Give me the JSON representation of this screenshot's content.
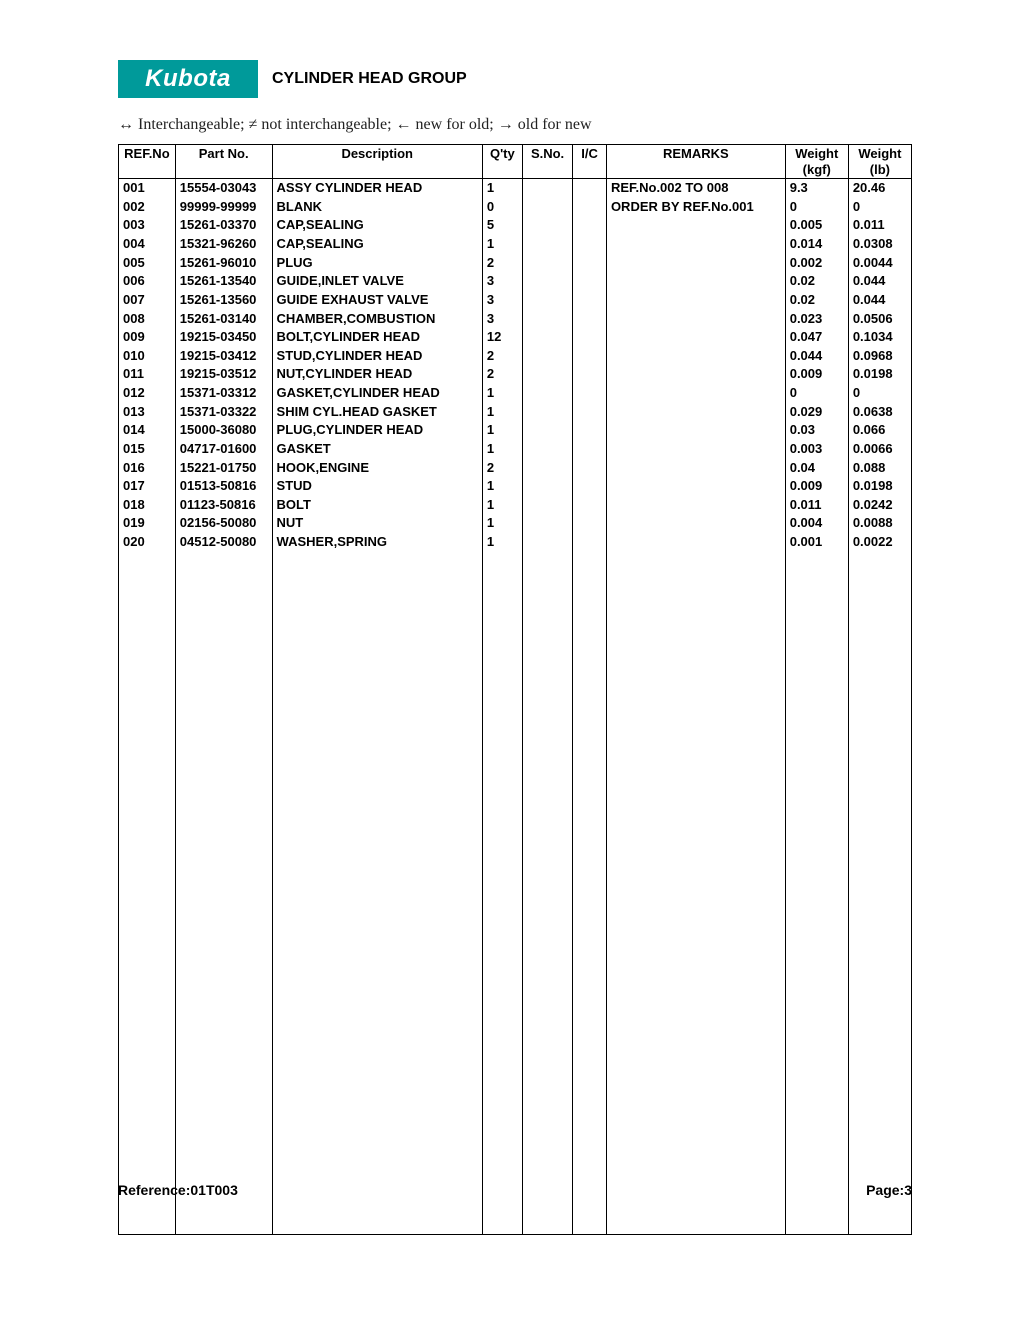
{
  "brand": "Kubota",
  "title": "CYLINDER HEAD GROUP",
  "legend": "↔ Interchangeable;   ≠ not interchangeable;   ← new for old;   → old for new",
  "columns": {
    "ref": "REF.No",
    "part": "Part No.",
    "desc": "Description",
    "qty": "Q'ty",
    "sno": "S.No.",
    "ic": "I/C",
    "remarks": "REMARKS",
    "wkgf_l1": "Weight",
    "wkgf_l2": "(kgf)",
    "wlb_l1": "Weight",
    "wlb_l2": "(lb)"
  },
  "rows": [
    {
      "ref": "001",
      "part": "15554-03043",
      "desc": "ASSY CYLINDER HEAD",
      "qty": "1",
      "sno": "",
      "ic": "",
      "rem": "REF.No.002 TO 008",
      "wkgf": "9.3",
      "wlb": "20.46"
    },
    {
      "ref": "002",
      "part": "99999-99999",
      "desc": "BLANK",
      "qty": "0",
      "sno": "",
      "ic": "",
      "rem": "ORDER BY REF.No.001",
      "wkgf": "0",
      "wlb": "0"
    },
    {
      "ref": "003",
      "part": "15261-03370",
      "desc": "CAP,SEALING",
      "qty": "5",
      "sno": "",
      "ic": "",
      "rem": "",
      "wkgf": "0.005",
      "wlb": "0.011"
    },
    {
      "ref": "004",
      "part": "15321-96260",
      "desc": "CAP,SEALING",
      "qty": "1",
      "sno": "",
      "ic": "",
      "rem": "",
      "wkgf": "0.014",
      "wlb": "0.0308"
    },
    {
      "ref": "005",
      "part": "15261-96010",
      "desc": "PLUG",
      "qty": "2",
      "sno": "",
      "ic": "",
      "rem": "",
      "wkgf": "0.002",
      "wlb": "0.0044"
    },
    {
      "ref": "006",
      "part": "15261-13540",
      "desc": "GUIDE,INLET VALVE",
      "qty": "3",
      "sno": "",
      "ic": "",
      "rem": "",
      "wkgf": "0.02",
      "wlb": "0.044"
    },
    {
      "ref": "007",
      "part": "15261-13560",
      "desc": "GUIDE EXHAUST VALVE",
      "qty": "3",
      "sno": "",
      "ic": "",
      "rem": "",
      "wkgf": "0.02",
      "wlb": "0.044"
    },
    {
      "ref": "008",
      "part": "15261-03140",
      "desc": "CHAMBER,COMBUSTION",
      "qty": "3",
      "sno": "",
      "ic": "",
      "rem": "",
      "wkgf": "0.023",
      "wlb": "0.0506"
    },
    {
      "ref": "009",
      "part": "19215-03450",
      "desc": "BOLT,CYLINDER HEAD",
      "qty": "12",
      "sno": "",
      "ic": "",
      "rem": "",
      "wkgf": "0.047",
      "wlb": "0.1034"
    },
    {
      "ref": "010",
      "part": "19215-03412",
      "desc": "STUD,CYLINDER HEAD",
      "qty": "2",
      "sno": "",
      "ic": "",
      "rem": "",
      "wkgf": "0.044",
      "wlb": "0.0968"
    },
    {
      "ref": "011",
      "part": "19215-03512",
      "desc": "NUT,CYLINDER HEAD",
      "qty": "2",
      "sno": "",
      "ic": "",
      "rem": "",
      "wkgf": "0.009",
      "wlb": "0.0198"
    },
    {
      "ref": "012",
      "part": "15371-03312",
      "desc": "GASKET,CYLINDER HEAD",
      "qty": "1",
      "sno": "",
      "ic": "",
      "rem": "",
      "wkgf": "0",
      "wlb": "0"
    },
    {
      "ref": "013",
      "part": "15371-03322",
      "desc": "SHIM CYL.HEAD GASKET",
      "qty": "1",
      "sno": "",
      "ic": "",
      "rem": "",
      "wkgf": "0.029",
      "wlb": "0.0638"
    },
    {
      "ref": "014",
      "part": "15000-36080",
      "desc": "PLUG,CYLINDER HEAD",
      "qty": "1",
      "sno": "",
      "ic": "",
      "rem": "",
      "wkgf": "0.03",
      "wlb": "0.066"
    },
    {
      "ref": "015",
      "part": "04717-01600",
      "desc": "GASKET",
      "qty": "1",
      "sno": "",
      "ic": "",
      "rem": "",
      "wkgf": "0.003",
      "wlb": "0.0066"
    },
    {
      "ref": "016",
      "part": "15221-01750",
      "desc": "HOOK,ENGINE",
      "qty": "2",
      "sno": "",
      "ic": "",
      "rem": "",
      "wkgf": "0.04",
      "wlb": "0.088"
    },
    {
      "ref": "017",
      "part": "01513-50816",
      "desc": "STUD",
      "qty": "1",
      "sno": "",
      "ic": "",
      "rem": "",
      "wkgf": "0.009",
      "wlb": "0.0198"
    },
    {
      "ref": "018",
      "part": "01123-50816",
      "desc": "BOLT",
      "qty": "1",
      "sno": "",
      "ic": "",
      "rem": "",
      "wkgf": "0.011",
      "wlb": "0.0242"
    },
    {
      "ref": "019",
      "part": "02156-50080",
      "desc": "NUT",
      "qty": "1",
      "sno": "",
      "ic": "",
      "rem": "",
      "wkgf": "0.004",
      "wlb": "0.0088"
    },
    {
      "ref": "020",
      "part": "04512-50080",
      "desc": "WASHER,SPRING",
      "qty": "1",
      "sno": "",
      "ic": "",
      "rem": "",
      "wkgf": "0.001",
      "wlb": "0.0022"
    }
  ],
  "footer": {
    "reference_label": "Reference:",
    "reference_value": "01T003",
    "page_label": "Page:",
    "page_value": "3"
  }
}
